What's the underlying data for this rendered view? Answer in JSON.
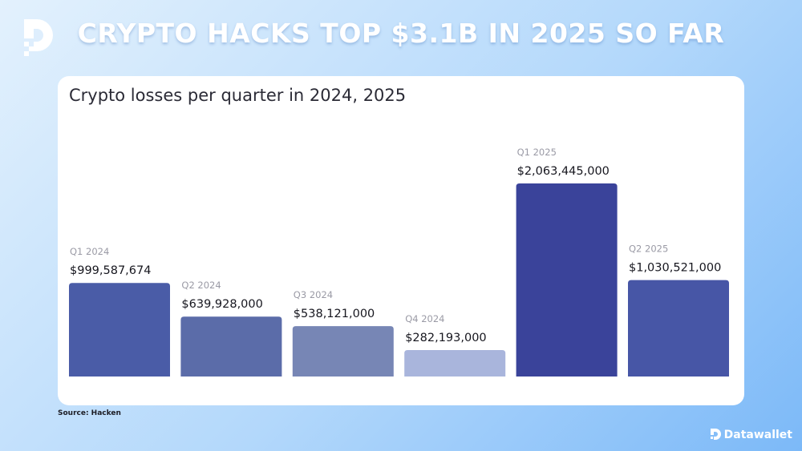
{
  "header": {
    "headline": "CRYPTO HACKS TOP $3.1B IN 2025 SO FAR",
    "logo_icon": "datawallet-d-logo-icon"
  },
  "footer": {
    "source": "Source: Hacken",
    "brand": "Datawallet"
  },
  "chart_data": {
    "type": "bar",
    "title": "Crypto losses per quarter in 2024, 2025",
    "xlabel": "",
    "ylabel": "",
    "ylim": [
      0,
      2200000000
    ],
    "grid": false,
    "legend": "none",
    "categories": [
      "Q1 2024",
      "Q2 2024",
      "Q3 2024",
      "Q4 2024",
      "Q1 2025",
      "Q2 2025"
    ],
    "values": [
      999587674,
      639928000,
      538121000,
      282193000,
      2063445000,
      1030521000
    ],
    "value_labels": [
      "$999,587,674",
      "$639,928,000",
      "$538,121,000",
      "$282,193,000",
      "$2,063,445,000",
      "$1,030,521,000"
    ],
    "colors": [
      "#4a5ca7",
      "#5b6ca9",
      "#7786b5",
      "#a9b5dc",
      "#3a439a",
      "#4756a6"
    ]
  }
}
